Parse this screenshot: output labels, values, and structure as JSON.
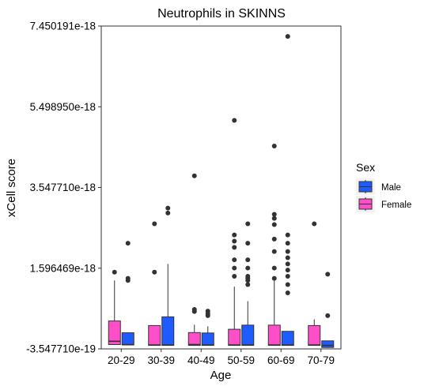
{
  "chart_data": {
    "type": "box",
    "title": "Neutrophils in SKINNS",
    "xlabel": "Age",
    "ylabel": "xCell score",
    "categories": [
      "20-29",
      "30-39",
      "40-49",
      "50-59",
      "60-69",
      "70-79"
    ],
    "y_ticks": [
      {
        "value": -3.54771e-19,
        "label": "-3.547710e-19"
      },
      {
        "value": 1.596469e-18,
        "label": "1.596469e-18"
      },
      {
        "value": 3.54771e-18,
        "label": "3.547710e-18"
      },
      {
        "value": 5.49895e-18,
        "label": "5.498950e-18"
      },
      {
        "value": 7.450191e-18,
        "label": "7.450191e-18"
      }
    ],
    "ylim": [
      -3.54771e-19,
      7.450191e-18
    ],
    "grid": false,
    "legend": {
      "title": "Sex",
      "position": "right",
      "entries": [
        "Male",
        "Female"
      ]
    },
    "series": [
      {
        "name": "Female",
        "color": "#ff4fc8",
        "boxes": [
          {
            "category": "20-29",
            "whisker_low": -2.6e-19,
            "q1": -2.5e-19,
            "median": -1.7e-19,
            "q3": 3.2e-19,
            "whisker_high": 1.3e-18,
            "outliers": [
              1.5e-18
            ]
          },
          {
            "category": "30-39",
            "whisker_low": -2.8e-19,
            "q1": -2.7e-19,
            "median": -2.6e-19,
            "q3": 2.1e-19,
            "whisker_high": 2.1e-19,
            "outliers": [
              1.5e-18,
              2.67e-18
            ]
          },
          {
            "category": "40-49",
            "whisker_low": -2.8e-19,
            "q1": -2.7e-19,
            "median": -2.5e-19,
            "q3": 4e-20,
            "whisker_high": 2.3e-19,
            "outliers": [
              5.5e-19,
              6e-19,
              3.83e-18
            ]
          },
          {
            "category": "50-59",
            "whisker_low": -2.8e-19,
            "q1": -2.7e-19,
            "median": -2.6e-19,
            "q3": 1.2e-19,
            "whisker_high": 1.15e-18,
            "outliers": [
              1.4e-18,
              1.6e-18,
              1.8e-18,
              2.1e-18,
              2.25e-18,
              2.4e-18,
              5.17e-18
            ]
          },
          {
            "category": "60-69",
            "whisker_low": -2.8e-19,
            "q1": -2.7e-19,
            "median": -2.6e-19,
            "q3": 2.2e-19,
            "whisker_high": 1.3e-18,
            "outliers": [
              1.35e-18,
              1.6e-18,
              2e-18,
              2.3e-18,
              2.65e-18,
              2.8e-18,
              2.9e-18,
              4.55e-18
            ]
          },
          {
            "category": "70-79",
            "whisker_low": -2.8e-19,
            "q1": -2.7e-19,
            "median": -2.6e-19,
            "q3": 2.1e-19,
            "whisker_high": 3.6e-19,
            "outliers": [
              2.67e-18
            ]
          }
        ]
      },
      {
        "name": "Male",
        "color": "#1f5cff",
        "boxes": [
          {
            "category": "20-29",
            "whisker_low": -2.7e-19,
            "q1": -2.6e-19,
            "median": -2.5e-19,
            "q3": 3.5e-20,
            "whisker_high": 3.5e-20,
            "outliers": [
              1.3e-18,
              1.35e-18,
              2.2e-18
            ]
          },
          {
            "category": "30-39",
            "whisker_low": -2.8e-19,
            "q1": -2.7e-19,
            "median": -2.6e-19,
            "q3": 4.2e-19,
            "whisker_high": 1.7e-18,
            "outliers": [
              2.93e-18,
              3.05e-18
            ]
          },
          {
            "category": "40-49",
            "whisker_low": -2.8e-19,
            "q1": -2.7e-19,
            "median": -2.6e-19,
            "q3": 3e-20,
            "whisker_high": 1.9e-19,
            "outliers": [
              4.5e-19,
              5e-19,
              5.6e-19
            ]
          },
          {
            "category": "50-59",
            "whisker_low": -2.8e-19,
            "q1": -2.7e-19,
            "median": -2.6e-19,
            "q3": 2.2e-19,
            "whisker_high": 8e-19,
            "outliers": [
              1.2e-18,
              1.3e-18,
              1.35e-18,
              1.4e-18,
              1.6e-18,
              1.8e-18,
              2.2e-18,
              2.67e-18
            ]
          },
          {
            "category": "60-69",
            "whisker_low": -2.8e-19,
            "q1": -2.7e-19,
            "median": -2.6e-19,
            "q3": 7e-20,
            "whisker_high": 7e-20,
            "outliers": [
              1e-18,
              1.2e-18,
              1.4e-18,
              1.55e-18,
              1.7e-18,
              1.85e-18,
              2e-18,
              2.2e-18,
              2.4e-18,
              7.2e-18
            ]
          },
          {
            "category": "70-79",
            "whisker_low": -3.3e-19,
            "q1": -3.2e-19,
            "median": -2.7e-19,
            "q3": -1.6e-19,
            "whisker_high": -1.6e-19,
            "outliers": [
              4.5e-19,
              1.45e-18
            ]
          }
        ]
      }
    ]
  }
}
